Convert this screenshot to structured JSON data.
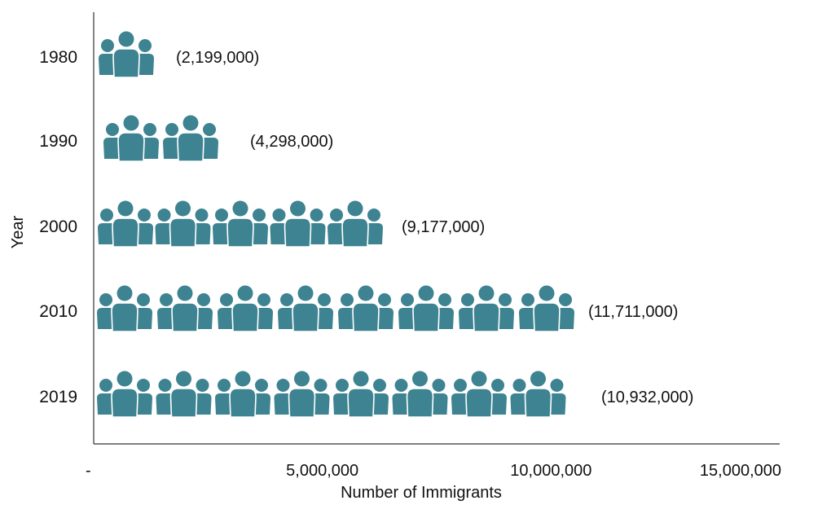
{
  "chart_data": {
    "type": "bar",
    "title": "",
    "xlabel": "Number of Immigrants",
    "ylabel": "Year",
    "categories": [
      "1980",
      "1990",
      "2000",
      "2010",
      "2019"
    ],
    "values": [
      2199000,
      4298000,
      9177000,
      11711000,
      10932000
    ],
    "value_labels": [
      "(2,199,000)",
      "(4,298,000)",
      "(9,177,000)",
      "(11,711,000)",
      "(10,932,000)"
    ],
    "icon_counts": [
      1,
      2,
      5,
      8,
      8
    ],
    "icon_name": "people-group-icon",
    "x_ticks": [
      0,
      5000000,
      10000000,
      15000000
    ],
    "x_tick_labels": [
      "-",
      "5,000,000",
      "10,000,000",
      "15,000,000"
    ],
    "xlim": [
      0,
      15000000
    ],
    "grid": false,
    "colors": {
      "icon": "#3e8391",
      "axis": "#333333"
    }
  }
}
